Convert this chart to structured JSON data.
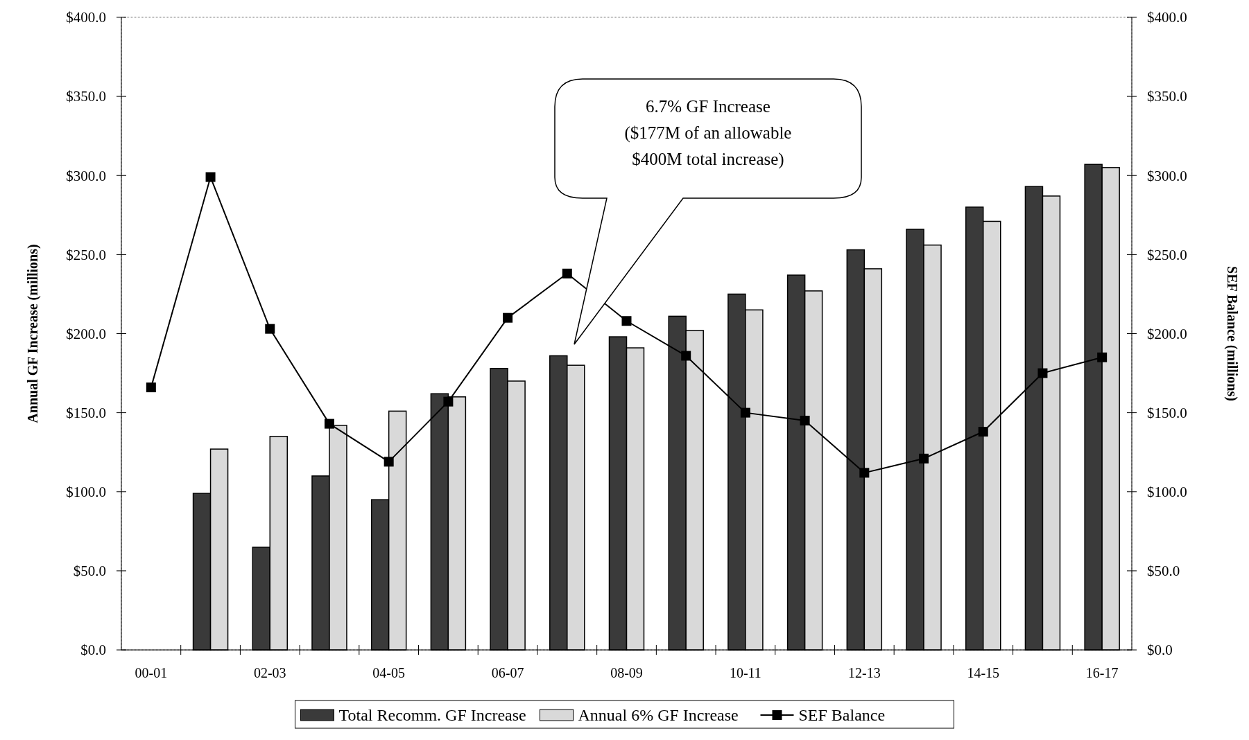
{
  "chart_data": {
    "type": "bar",
    "ylabel": "Annual GF Increase (millions)",
    "y2label": "SEF Balance (millions)",
    "categories": [
      "00-01",
      null,
      "02-03",
      null,
      "04-05",
      null,
      "06-07",
      null,
      "08-09",
      null,
      "10-11",
      null,
      "12-13",
      null,
      "14-15",
      null,
      "16-17"
    ],
    "series": [
      {
        "name": "Total Recomm. GF Increase",
        "color": "#3a3a3a",
        "values": [
          null,
          99,
          65,
          110,
          95,
          162,
          178,
          186,
          198,
          211,
          225,
          237,
          253,
          266,
          280,
          293,
          307
        ]
      },
      {
        "name": "Annual 6% GF Increase",
        "color": "#d9d9d9",
        "values": [
          null,
          127,
          135,
          142,
          151,
          160,
          170,
          180,
          191,
          202,
          215,
          227,
          241,
          256,
          271,
          287,
          305
        ]
      },
      {
        "name": "SEF Balance",
        "type": "line",
        "axis": "y2",
        "color": "#000000",
        "marker": "square",
        "line_style": "solid",
        "values": [
          166,
          299,
          203,
          143,
          119,
          157,
          210,
          238,
          208,
          186,
          150,
          145,
          112,
          121,
          138,
          175,
          185
        ]
      }
    ],
    "ylim": [
      0,
      400
    ],
    "yticks": [
      {
        "value": 0,
        "label": "$0.0"
      },
      {
        "value": 50,
        "label": "$50.0"
      },
      {
        "value": 100,
        "label": "$100.0"
      },
      {
        "value": 150,
        "label": "$150.0"
      },
      {
        "value": 200,
        "label": "$200.0"
      },
      {
        "value": 250,
        "label": "$250.0"
      },
      {
        "value": 300,
        "label": "$300.0"
      },
      {
        "value": 350,
        "label": "$350.0"
      },
      {
        "value": 400,
        "label": "$400.0"
      }
    ],
    "y2lim": [
      0,
      400
    ],
    "y2ticks": [
      {
        "value": 0,
        "label": "$0.0"
      },
      {
        "value": 50,
        "label": "$50.0"
      },
      {
        "value": 100,
        "label": "$100.0"
      },
      {
        "value": 150,
        "label": "$150.0"
      },
      {
        "value": 200,
        "label": "$200.0"
      },
      {
        "value": 250,
        "label": "$250.0"
      },
      {
        "value": 300,
        "label": "$300.0"
      },
      {
        "value": 350,
        "label": "$350.0"
      },
      {
        "value": 400,
        "label": "$400.0"
      }
    ],
    "annotations": [
      "6.7% GF Increase\n($177M of an allowable\n$400M total increase)"
    ],
    "grid": false,
    "legend": "bottom"
  }
}
